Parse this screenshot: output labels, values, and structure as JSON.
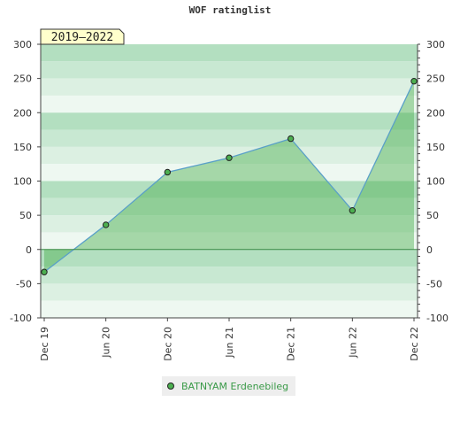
{
  "chart_data": {
    "type": "area",
    "title": "WOF ratinglist",
    "period_badge": "2019–2022",
    "x_ticks": [
      "Dec 19",
      "Jun 20",
      "Dec 20",
      "Jun 21",
      "Dec 21",
      "Jun 22",
      "Dec 22"
    ],
    "y_ticks": [
      "300",
      "250",
      "200",
      "150",
      "100",
      "50",
      "0",
      "-50",
      "-100"
    ],
    "ylim": [
      -100,
      300
    ],
    "series": [
      {
        "name": "BATNYAM Erdenebileg",
        "color": "#4caf50",
        "line_color": "#5aa0c8",
        "points": [
          {
            "x": "Dec 19",
            "y": -33
          },
          {
            "x": "Jun 20",
            "y": 36
          },
          {
            "x": "Dec 20",
            "y": 113
          },
          {
            "x": "Jun 21",
            "y": 134
          },
          {
            "x": "Dec 21",
            "y": 162
          },
          {
            "x": "Jun 22",
            "y": 57
          },
          {
            "x": "Dec 22",
            "y": 246
          }
        ]
      }
    ],
    "grid": true,
    "legend_position": "bottom"
  }
}
